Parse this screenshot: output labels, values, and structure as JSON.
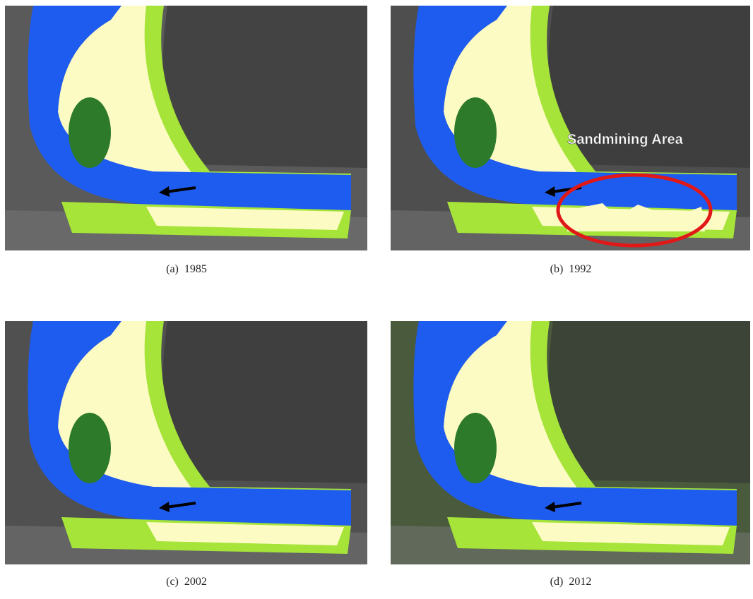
{
  "panels": [
    {
      "caption": "(a)  1985"
    },
    {
      "caption": "(b)  1992",
      "annotation": "Sandmining Area"
    },
    {
      "caption": "(c)  2002"
    },
    {
      "caption": "(d)  2012"
    }
  ]
}
